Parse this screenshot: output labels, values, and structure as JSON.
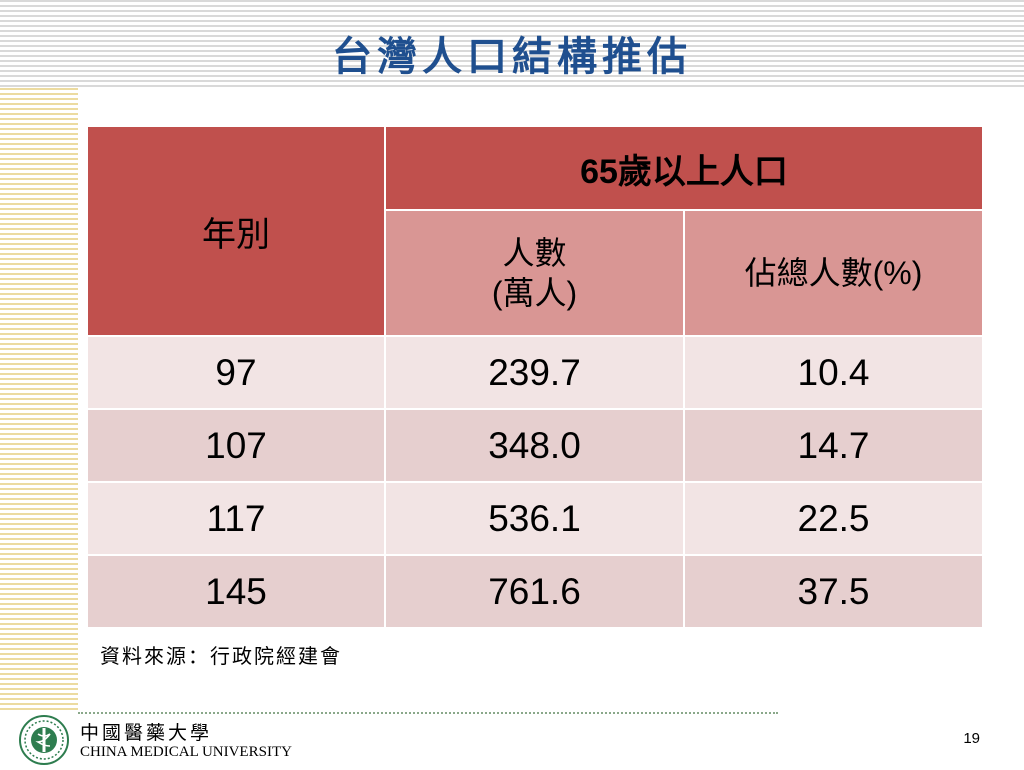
{
  "slide": {
    "title": "台灣人口結構推估",
    "source": "資料來源：行政院經建會",
    "page_number": "19"
  },
  "table": {
    "header_group_num": "65",
    "header_group_text": "歲以上人口",
    "header_year": "年別",
    "header_count_line1": "人數",
    "header_count_line2_open": "(",
    "header_count_line2_text": "萬人",
    "header_count_line2_close": ")",
    "header_pct_text": "佔總人數",
    "header_pct_unit": "(%)",
    "rows": [
      {
        "year": "97",
        "count": "239.7",
        "pct": "10.4"
      },
      {
        "year": "107",
        "count": "348.0",
        "pct": "14.7"
      },
      {
        "year": "117",
        "count": "536.1",
        "pct": "22.5"
      },
      {
        "year": "145",
        "count": "761.6",
        "pct": "37.5"
      }
    ]
  },
  "footer": {
    "university_cn": "中國醫藥大學",
    "university_en": "CHINA MEDICAL UNIVERSITY"
  },
  "colors": {
    "title": "#1f4f8f",
    "header_dark": "#c0504d",
    "header_light": "#d99694",
    "row_light": "#f2e4e4",
    "row_dark": "#e6cfcf",
    "logo_green": "#2e7d4f"
  },
  "icons": {
    "logo": "china-medical-university-emblem"
  }
}
